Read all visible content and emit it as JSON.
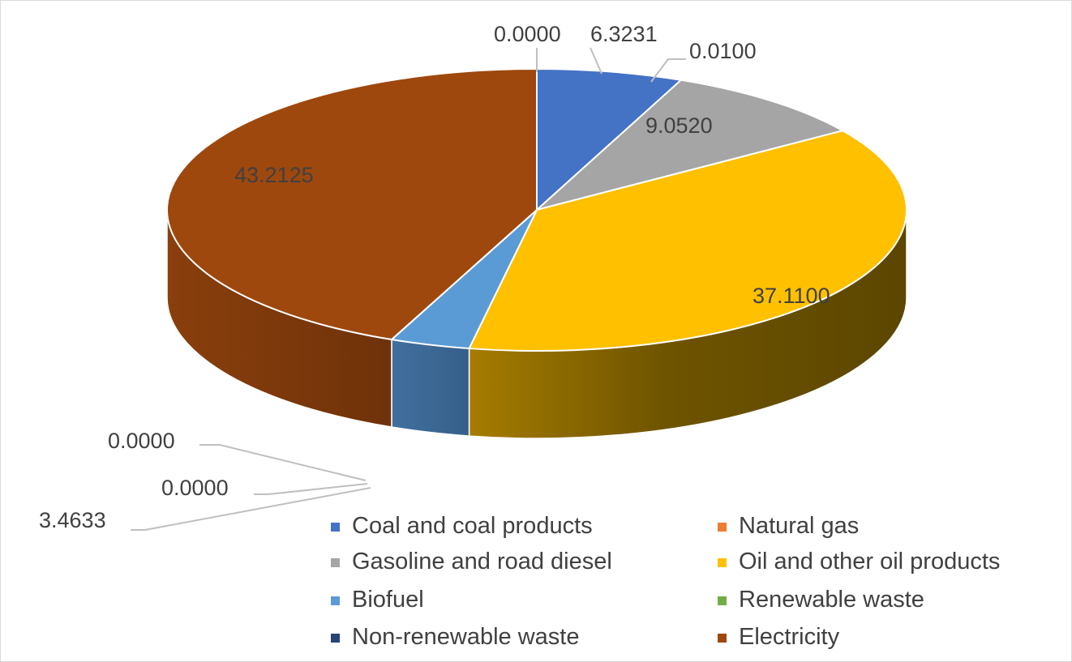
{
  "chart_data": {
    "type": "pie",
    "style": "3d",
    "legend_position": "bottom-right",
    "series": [
      {
        "name": "Coal and coal products",
        "value": 6.3231,
        "label": "6.3231",
        "color": "#4472C4"
      },
      {
        "name": "Natural gas",
        "value": 0.0,
        "label": "0.0000",
        "color": "#ED7D31"
      },
      {
        "name": "Gasoline and road diesel",
        "value": 9.052,
        "label": "9.0520",
        "color": "#A5A5A5"
      },
      {
        "name": "Oil and other oil products",
        "value": 37.11,
        "label": "37.1100",
        "color": "#FFC000"
      },
      {
        "name": "Biofuel",
        "value": 3.4633,
        "label": "3.4633",
        "color": "#5B9BD5"
      },
      {
        "name": "Renewable waste",
        "value": 0.0,
        "label": "0.0000",
        "color": "#70AD47"
      },
      {
        "name": "Non-renewable waste",
        "value": 0.0,
        "label": "0.0000",
        "color": "#264478"
      },
      {
        "name": "Electricity",
        "value": 43.2125,
        "label": "43.2125",
        "color": "#9E480E"
      }
    ],
    "extra_labels": [
      "0.0100"
    ]
  }
}
